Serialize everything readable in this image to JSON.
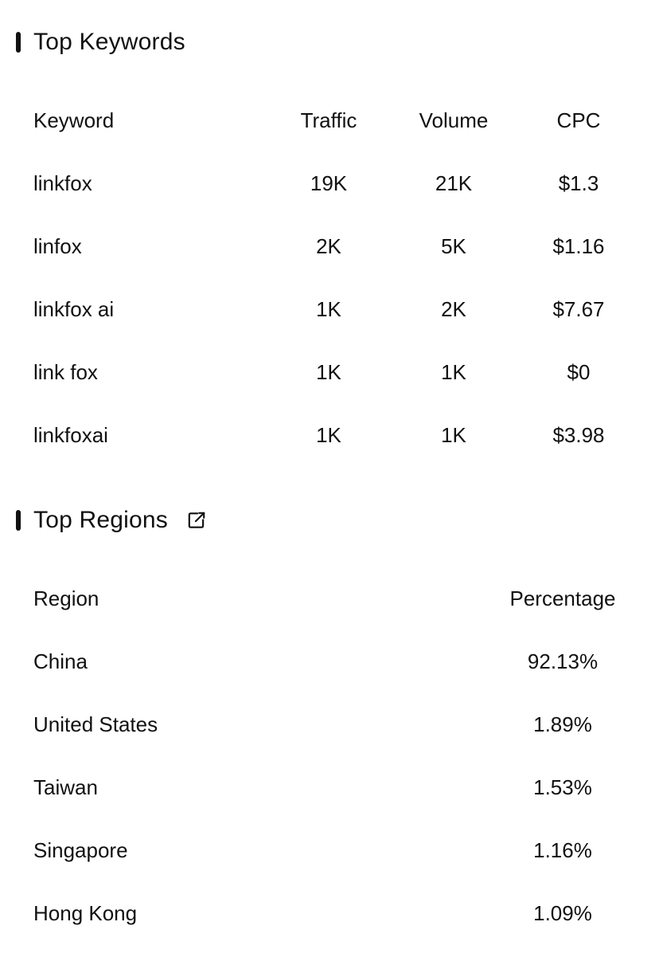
{
  "keywords": {
    "title": "Top Keywords",
    "columns": {
      "keyword": "Keyword",
      "traffic": "Traffic",
      "volume": "Volume",
      "cpc": "CPC"
    },
    "rows": [
      {
        "keyword": "linkfox",
        "traffic": "19K",
        "volume": "21K",
        "cpc": "$1.3"
      },
      {
        "keyword": "linfox",
        "traffic": "2K",
        "volume": "5K",
        "cpc": "$1.16"
      },
      {
        "keyword": "linkfox ai",
        "traffic": "1K",
        "volume": "2K",
        "cpc": "$7.67"
      },
      {
        "keyword": "link fox",
        "traffic": "1K",
        "volume": "1K",
        "cpc": "$0"
      },
      {
        "keyword": "linkfoxai",
        "traffic": "1K",
        "volume": "1K",
        "cpc": "$3.98"
      }
    ]
  },
  "regions": {
    "title": "Top Regions",
    "link_icon": "external-link-icon",
    "columns": {
      "region": "Region",
      "percentage": "Percentage"
    },
    "rows": [
      {
        "region": "China",
        "percentage": "92.13%"
      },
      {
        "region": "United States",
        "percentage": "1.89%"
      },
      {
        "region": "Taiwan",
        "percentage": "1.53%"
      },
      {
        "region": "Singapore",
        "percentage": "1.16%"
      },
      {
        "region": "Hong Kong",
        "percentage": "1.09%"
      }
    ]
  },
  "colors": {
    "text": "#111111",
    "background": "#ffffff"
  }
}
